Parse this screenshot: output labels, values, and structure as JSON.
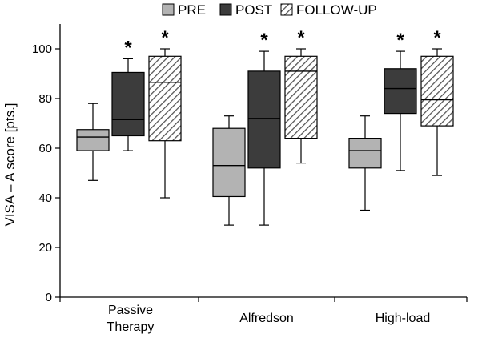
{
  "chart_data": {
    "type": "boxplot",
    "ylabel": "VISA – A score [pts.]",
    "ylim": [
      0,
      110
    ],
    "yticks": [
      0,
      20,
      40,
      60,
      80,
      100
    ],
    "grid": false,
    "legend_position": "top",
    "categories": [
      [
        "Passive",
        "Therapy"
      ],
      [
        "Alfredson"
      ],
      [
        "High-load"
      ]
    ],
    "series": [
      {
        "name": "PRE",
        "fill": "#b3b3b3",
        "pattern": "solid",
        "significance": [
          "",
          "",
          ""
        ]
      },
      {
        "name": "POST",
        "fill": "#3c3c3c",
        "pattern": "solid",
        "significance": [
          "*",
          "*",
          "*"
        ]
      },
      {
        "name": "FOLLOW-UP",
        "fill": "#ffffff",
        "pattern": "hatch",
        "significance": [
          "*",
          "*",
          "*"
        ]
      }
    ],
    "boxes": [
      [
        {
          "min": 47,
          "q1": 59,
          "median": 64.5,
          "q3": 67.5,
          "max": 78
        },
        {
          "min": 59,
          "q1": 65,
          "median": 71.5,
          "q3": 90.5,
          "max": 96
        },
        {
          "min": 40,
          "q1": 63,
          "median": 86.5,
          "q3": 97,
          "max": 100
        }
      ],
      [
        {
          "min": 29,
          "q1": 40.5,
          "median": 53,
          "q3": 68,
          "max": 73
        },
        {
          "min": 29,
          "q1": 52,
          "median": 72,
          "q3": 91,
          "max": 99
        },
        {
          "min": 54,
          "q1": 64,
          "median": 91,
          "q3": 97,
          "max": 100
        }
      ],
      [
        {
          "min": 35,
          "q1": 52,
          "median": 59,
          "q3": 64,
          "max": 73
        },
        {
          "min": 51,
          "q1": 74,
          "median": 84,
          "q3": 92,
          "max": 99
        },
        {
          "min": 49,
          "q1": 69,
          "median": 79.5,
          "q3": 97,
          "max": 100
        }
      ]
    ]
  }
}
